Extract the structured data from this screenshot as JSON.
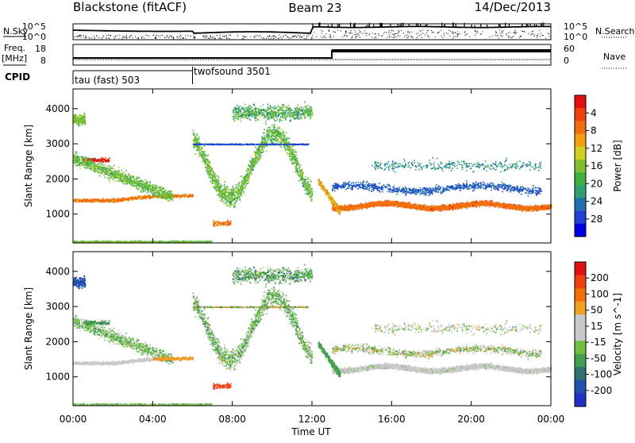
{
  "header": {
    "station": "Blackstone (fitACF)",
    "beam": "Beam 23",
    "date": "14/Dec/2013"
  },
  "labels": {
    "nsky": "N.Sky",
    "nsearch": "N.Search",
    "freq": "Freq.",
    "freq_unit": "[MHz]",
    "nave": "Nave",
    "cpid": "CPID",
    "cpid_1": "tau (fast) 503",
    "cpid_2": "twofsound 3501",
    "nsky_top": "10^5",
    "nsky_bot": "10^0",
    "nsearch_top": "10^5",
    "nsearch_bot": "10^0",
    "freq_top": "18",
    "freq_bot": "8",
    "nave_top": "60",
    "nave_bot": "0",
    "power_label": "Power [dB]",
    "velocity_label": "Velocity [m s^-1]"
  },
  "chart_data": [
    {
      "type": "heatmap",
      "panel": "power",
      "xlabel": "Time UT",
      "ylabel": "Slant Range [km]",
      "xlim": [
        0,
        24
      ],
      "ylim": [
        180,
        4560
      ],
      "xticks": [
        "00:00",
        "04:00",
        "08:00",
        "12:00",
        "16:00",
        "20:00",
        "00:00"
      ],
      "yticks": [
        1000,
        2000,
        3000,
        4000
      ],
      "colorbar": {
        "label": "Power [dB]",
        "ticks": [
          4,
          8,
          12,
          16,
          20,
          24,
          28
        ],
        "colors": [
          "#0000e0",
          "#2040d0",
          "#2070b0",
          "#30a070",
          "#40b040",
          "#80c030",
          "#d0d020",
          "#f0a010",
          "#f07010",
          "#f04010",
          "#e01010"
        ]
      }
    },
    {
      "type": "heatmap",
      "panel": "velocity",
      "xlabel": "Time UT",
      "ylabel": "Slant Range [km]",
      "xlim": [
        0,
        24
      ],
      "ylim": [
        180,
        4560
      ],
      "xticks": [
        "00:00",
        "04:00",
        "08:00",
        "12:00",
        "16:00",
        "20:00",
        "00:00"
      ],
      "yticks": [
        1000,
        2000,
        3000,
        4000
      ],
      "colorbar": {
        "label": "Velocity [m s^-1]",
        "ticks": [
          200,
          100,
          50,
          15,
          -15,
          -50,
          -100,
          -200
        ],
        "colors": [
          "#2030c0",
          "#2050b0",
          "#307070",
          "#40a050",
          "#70c040",
          "#c8c8c8",
          "#c8c8c8",
          "#f0a020",
          "#f07010",
          "#f04010",
          "#e01010"
        ]
      }
    }
  ]
}
